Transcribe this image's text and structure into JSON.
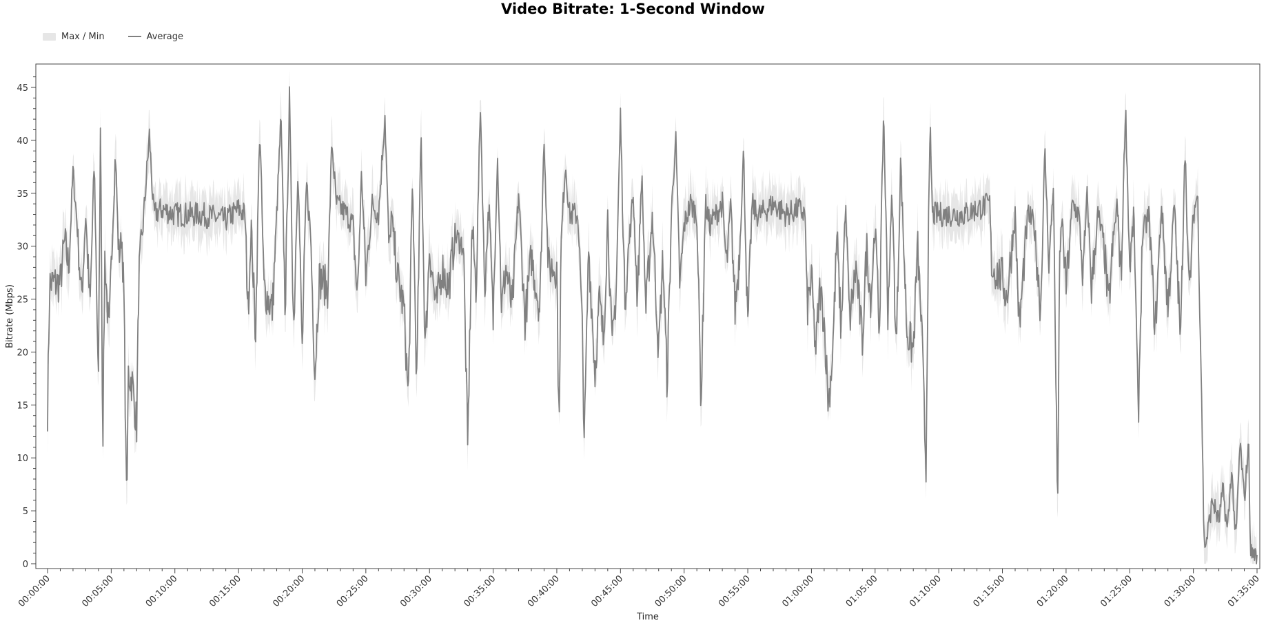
{
  "chart_data": {
    "type": "line",
    "title": "Video Bitrate: 1-Second Window",
    "xlabel": "Time",
    "ylabel": "Bitrate (Mbps)",
    "ylim": [
      0,
      47
    ],
    "xlim_seconds": [
      0,
      5730
    ],
    "grid": false,
    "legend_position": "top-left",
    "x_ticks": [
      "00:00:00",
      "00:05:00",
      "00:10:00",
      "00:15:00",
      "00:20:00",
      "00:25:00",
      "00:30:00",
      "00:35:00",
      "00:40:00",
      "00:45:00",
      "00:50:00",
      "00:55:00",
      "01:00:00",
      "01:05:00",
      "01:10:00",
      "01:15:00",
      "01:20:00",
      "01:25:00",
      "01:30:00",
      "01:35:00"
    ],
    "y_ticks": [
      0,
      5,
      10,
      15,
      20,
      25,
      30,
      35,
      40,
      45
    ],
    "series": [
      {
        "name": "Max / Min",
        "kind": "band",
        "color": "#e6e6e6"
      },
      {
        "name": "Average",
        "kind": "line",
        "color": "#808080"
      }
    ],
    "keypoints": [
      [
        "00:00:00",
        14.5
      ],
      [
        "00:00:10",
        26.5
      ],
      [
        "00:01:00",
        26.5
      ],
      [
        "00:01:20",
        30.5
      ],
      [
        "00:01:40",
        28
      ],
      [
        "00:02:00",
        37
      ],
      [
        "00:02:20",
        32
      ],
      [
        "00:02:40",
        25
      ],
      [
        "00:03:00",
        33
      ],
      [
        "00:03:20",
        24
      ],
      [
        "00:03:40",
        38
      ],
      [
        "00:04:00",
        17
      ],
      [
        "00:04:10",
        43
      ],
      [
        "00:04:20",
        11
      ],
      [
        "00:04:30",
        29
      ],
      [
        "00:04:50",
        21
      ],
      [
        "00:05:00",
        28
      ],
      [
        "00:05:20",
        39
      ],
      [
        "00:05:35",
        29
      ],
      [
        "00:05:50",
        31
      ],
      [
        "00:06:00",
        25
      ],
      [
        "00:06:10",
        9.5
      ],
      [
        "00:06:15",
        7
      ],
      [
        "00:06:20",
        18
      ],
      [
        "00:06:40",
        17
      ],
      [
        "00:07:00",
        13
      ],
      [
        "00:07:10",
        27
      ],
      [
        "00:07:30",
        32
      ],
      [
        "00:08:00",
        40.5
      ],
      [
        "00:08:20",
        33
      ],
      [
        "00:09:00",
        33.5
      ],
      [
        "00:10:00",
        33
      ],
      [
        "00:12:00",
        33
      ],
      [
        "00:14:00",
        32.5
      ],
      [
        "00:15:00",
        33.5
      ],
      [
        "00:15:30",
        33
      ],
      [
        "00:15:45",
        24
      ],
      [
        "00:16:00",
        32
      ],
      [
        "00:16:20",
        21.5
      ],
      [
        "00:16:40",
        41.5
      ],
      [
        "00:17:00",
        26
      ],
      [
        "00:17:40",
        24
      ],
      [
        "00:18:20",
        42
      ],
      [
        "00:18:40",
        24
      ],
      [
        "00:19:00",
        44
      ],
      [
        "00:19:20",
        22
      ],
      [
        "00:19:40",
        38
      ],
      [
        "00:20:00",
        20
      ],
      [
        "00:20:20",
        36
      ],
      [
        "00:20:40",
        31
      ],
      [
        "00:21:00",
        18
      ],
      [
        "00:21:20",
        27
      ],
      [
        "00:22:00",
        26
      ],
      [
        "00:22:20",
        40
      ],
      [
        "00:22:40",
        34
      ],
      [
        "00:23:30",
        33
      ],
      [
        "00:24:00",
        32
      ],
      [
        "00:24:20",
        25
      ],
      [
        "00:24:40",
        37
      ],
      [
        "00:25:00",
        27
      ],
      [
        "00:25:30",
        34
      ],
      [
        "00:26:00",
        33
      ],
      [
        "00:26:30",
        42.5
      ],
      [
        "00:26:50",
        29
      ],
      [
        "00:27:00",
        33
      ],
      [
        "00:27:30",
        27
      ],
      [
        "00:28:00",
        24
      ],
      [
        "00:28:20",
        15.5
      ],
      [
        "00:28:40",
        36
      ],
      [
        "00:29:00",
        17
      ],
      [
        "00:29:20",
        41
      ],
      [
        "00:29:40",
        20
      ],
      [
        "00:30:00",
        30
      ],
      [
        "00:30:30",
        24
      ],
      [
        "00:31:00",
        28
      ],
      [
        "00:31:30",
        26
      ],
      [
        "00:32:00",
        31
      ],
      [
        "00:32:40",
        30
      ],
      [
        "00:33:00",
        11
      ],
      [
        "00:33:20",
        32
      ],
      [
        "00:33:40",
        26
      ],
      [
        "00:34:00",
        43.5
      ],
      [
        "00:34:20",
        26
      ],
      [
        "00:34:40",
        34
      ],
      [
        "00:35:00",
        23
      ],
      [
        "00:35:20",
        39
      ],
      [
        "00:35:40",
        24
      ],
      [
        "00:36:00",
        28
      ],
      [
        "00:36:30",
        24
      ],
      [
        "00:37:00",
        35
      ],
      [
        "00:37:30",
        23
      ],
      [
        "00:38:00",
        29
      ],
      [
        "00:38:40",
        24
      ],
      [
        "00:39:00",
        40.5
      ],
      [
        "00:39:20",
        28
      ],
      [
        "00:40:00",
        28
      ],
      [
        "00:40:10",
        12.5
      ],
      [
        "00:40:20",
        30
      ],
      [
        "00:40:40",
        38
      ],
      [
        "00:41:00",
        33
      ],
      [
        "00:41:40",
        33
      ],
      [
        "00:42:00",
        22
      ],
      [
        "00:42:10",
        11.5
      ],
      [
        "00:42:30",
        30
      ],
      [
        "00:43:00",
        18
      ],
      [
        "00:43:20",
        25
      ],
      [
        "00:43:40",
        21
      ],
      [
        "00:44:00",
        33
      ],
      [
        "00:44:20",
        20
      ],
      [
        "00:44:40",
        26
      ],
      [
        "00:45:00",
        42.5
      ],
      [
        "00:45:20",
        25
      ],
      [
        "00:45:40",
        30
      ],
      [
        "00:46:00",
        35
      ],
      [
        "00:46:20",
        25
      ],
      [
        "00:46:40",
        37
      ],
      [
        "00:47:00",
        24
      ],
      [
        "00:47:30",
        33
      ],
      [
        "00:48:00",
        20
      ],
      [
        "00:48:20",
        29
      ],
      [
        "00:48:40",
        17
      ],
      [
        "00:49:00",
        33
      ],
      [
        "00:49:20",
        40.5
      ],
      [
        "00:49:40",
        26
      ],
      [
        "00:50:00",
        32
      ],
      [
        "00:50:30",
        34
      ],
      [
        "00:51:00",
        33
      ],
      [
        "00:51:20",
        15
      ],
      [
        "00:51:40",
        34
      ],
      [
        "00:52:00",
        32
      ],
      [
        "00:53:00",
        34
      ],
      [
        "00:53:20",
        28
      ],
      [
        "00:53:40",
        34
      ],
      [
        "00:54:00",
        24
      ],
      [
        "00:54:20",
        29
      ],
      [
        "00:54:40",
        39
      ],
      [
        "00:55:00",
        22
      ],
      [
        "00:55:20",
        34
      ],
      [
        "00:55:40",
        33
      ],
      [
        "00:56:00",
        33
      ],
      [
        "00:57:00",
        34
      ],
      [
        "00:58:00",
        33
      ],
      [
        "00:59:00",
        33.5
      ],
      [
        "00:59:30",
        33
      ],
      [
        "00:59:40",
        24
      ],
      [
        "01:00:00",
        27
      ],
      [
        "01:00:20",
        20
      ],
      [
        "01:00:40",
        26
      ],
      [
        "01:01:00",
        23
      ],
      [
        "01:01:20",
        15
      ],
      [
        "01:01:40",
        20
      ],
      [
        "01:02:00",
        31
      ],
      [
        "01:02:20",
        22
      ],
      [
        "01:02:40",
        34
      ],
      [
        "01:03:00",
        23
      ],
      [
        "01:03:30",
        28
      ],
      [
        "01:04:00",
        21
      ],
      [
        "01:04:20",
        30
      ],
      [
        "01:04:40",
        25
      ],
      [
        "01:05:00",
        32
      ],
      [
        "01:05:20",
        22
      ],
      [
        "01:05:40",
        43
      ],
      [
        "01:06:00",
        24
      ],
      [
        "01:06:20",
        35
      ],
      [
        "01:06:40",
        20
      ],
      [
        "01:07:00",
        38
      ],
      [
        "01:07:30",
        22
      ],
      [
        "01:08:00",
        20
      ],
      [
        "01:08:20",
        30
      ],
      [
        "01:08:40",
        22
      ],
      [
        "01:09:00",
        8.5
      ],
      [
        "01:09:10",
        30
      ],
      [
        "01:09:20",
        41
      ],
      [
        "01:09:30",
        33
      ],
      [
        "01:10:00",
        33
      ],
      [
        "01:12:00",
        33
      ],
      [
        "01:14:00",
        34
      ],
      [
        "01:14:10",
        28
      ],
      [
        "01:15:00",
        27
      ],
      [
        "01:15:20",
        25
      ],
      [
        "01:15:40",
        29
      ],
      [
        "01:16:00",
        33
      ],
      [
        "01:16:20",
        22
      ],
      [
        "01:16:40",
        28
      ],
      [
        "01:17:00",
        33
      ],
      [
        "01:17:30",
        32
      ],
      [
        "01:18:00",
        24
      ],
      [
        "01:18:20",
        39
      ],
      [
        "01:18:40",
        28
      ],
      [
        "01:19:00",
        36
      ],
      [
        "01:19:20",
        5
      ],
      [
        "01:19:30",
        28
      ],
      [
        "01:19:40",
        33
      ],
      [
        "01:20:00",
        26
      ],
      [
        "01:20:30",
        34
      ],
      [
        "01:21:00",
        33
      ],
      [
        "01:21:20",
        27
      ],
      [
        "01:21:40",
        35
      ],
      [
        "01:22:00",
        26
      ],
      [
        "01:22:30",
        33
      ],
      [
        "01:23:00",
        30
      ],
      [
        "01:23:20",
        24
      ],
      [
        "01:23:40",
        30
      ],
      [
        "01:24:00",
        34
      ],
      [
        "01:24:20",
        27
      ],
      [
        "01:24:40",
        43.5
      ],
      [
        "01:25:00",
        28
      ],
      [
        "01:25:20",
        33
      ],
      [
        "01:25:40",
        13.5
      ],
      [
        "01:26:00",
        31
      ],
      [
        "01:26:30",
        33
      ],
      [
        "01:27:00",
        22
      ],
      [
        "01:27:30",
        34
      ],
      [
        "01:28:00",
        24
      ],
      [
        "01:28:30",
        34
      ],
      [
        "01:29:00",
        21
      ],
      [
        "01:29:20",
        40
      ],
      [
        "01:29:40",
        25
      ],
      [
        "01:30:00",
        33
      ],
      [
        "01:30:20",
        35
      ],
      [
        "01:30:40",
        15
      ],
      [
        "01:30:50",
        2
      ],
      [
        "01:31:00",
        2
      ],
      [
        "01:31:30",
        6
      ],
      [
        "01:32:00",
        4
      ],
      [
        "01:32:20",
        7
      ],
      [
        "01:32:40",
        3
      ],
      [
        "01:33:00",
        9
      ],
      [
        "01:33:20",
        2
      ],
      [
        "01:33:40",
        11.5
      ],
      [
        "01:34:00",
        6
      ],
      [
        "01:34:20",
        11.5
      ],
      [
        "01:34:30",
        1
      ],
      [
        "01:34:50",
        1
      ],
      [
        "01:35:00",
        0
      ]
    ]
  }
}
